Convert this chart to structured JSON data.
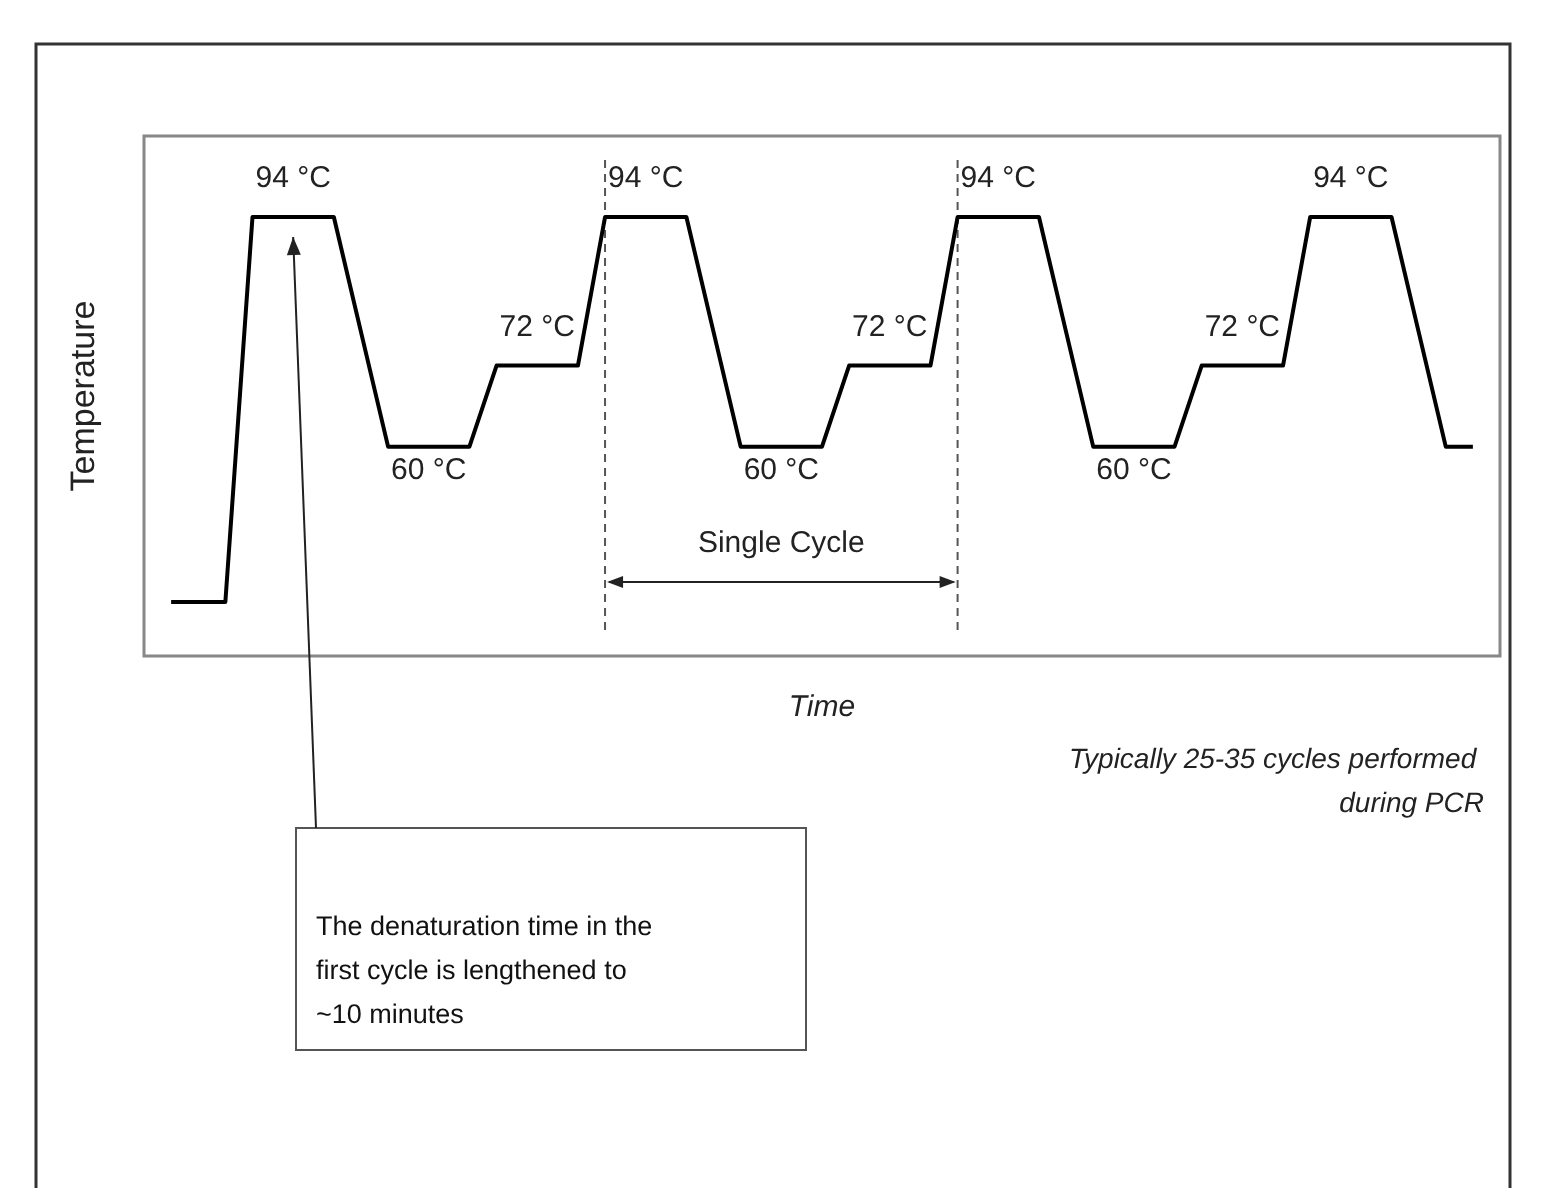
{
  "chart_data": {
    "type": "line",
    "xlabel": "Time",
    "ylabel": "Temperature",
    "categories": [
      null,
      null,
      null,
      null,
      null,
      null,
      null,
      null,
      null,
      null,
      null,
      null,
      null,
      null,
      null,
      null,
      null,
      null,
      null,
      null,
      null,
      null,
      null,
      null,
      null,
      null,
      null,
      null,
      null,
      null,
      null,
      null,
      null,
      null,
      null,
      null,
      null,
      null,
      null,
      null,
      null,
      null,
      null,
      null,
      null,
      null,
      null,
      null,
      null
    ],
    "values": [
      37,
      37,
      37,
      94,
      94,
      94,
      94,
      77,
      60,
      60,
      60,
      60,
      72,
      72,
      72,
      72,
      94,
      94,
      94,
      94,
      77,
      60,
      60,
      60,
      60,
      72,
      72,
      72,
      72,
      94,
      94,
      94,
      94,
      77,
      60,
      60,
      60,
      60,
      72,
      72,
      72,
      72,
      94,
      94,
      94,
      94,
      77,
      60,
      60
    ],
    "value_labels": [
      null,
      null,
      null,
      "94 °C",
      null,
      null,
      null,
      null,
      "60 °C",
      null,
      null,
      null,
      "72 °C",
      null,
      null,
      null,
      "94 °C",
      null,
      null,
      null,
      null,
      "60 °C",
      null,
      null,
      null,
      "72 °C",
      null,
      null,
      null,
      "94 °C",
      null,
      null,
      null,
      null,
      "60 °C",
      null,
      null,
      null,
      "72 °C",
      null,
      null,
      null,
      "94 °C",
      null,
      null,
      null,
      null,
      null,
      null
    ],
    "color": "#000000",
    "ylim": [
      29,
      106
    ],
    "marker": "none",
    "line_style": "solid",
    "annotations": [
      "Single Cycle",
      "Typically 25-35 cycles performed during PCR",
      "The denaturation time in the first cycle is lengthened to ~10 minutes"
    ]
  }
}
